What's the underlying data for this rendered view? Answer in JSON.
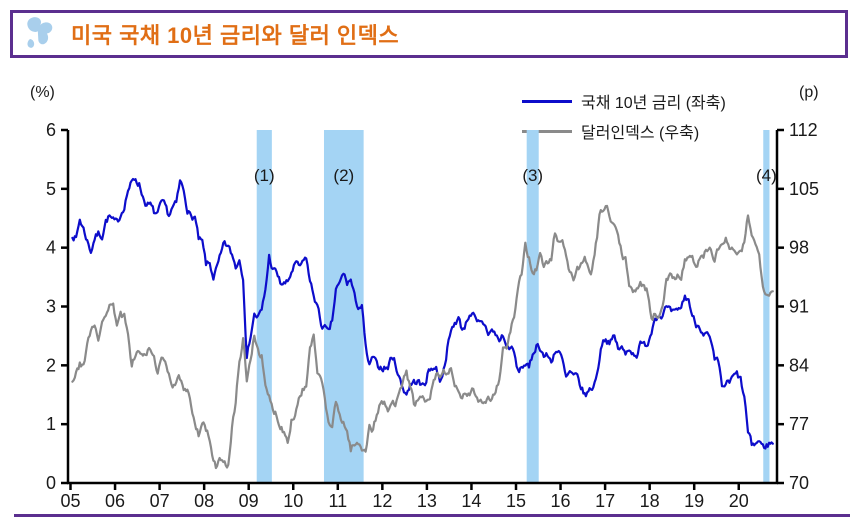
{
  "header": {
    "title": "미국 국채 10년 금리와 달러 인덱스"
  },
  "colors": {
    "accent_border": "#5b2f8f",
    "title_orange": "#e06e15",
    "band_blue": "#a4d4f4",
    "treasury_blue": "#0d0dcb",
    "dollar_gray": "#8a8a8a",
    "axis_black": "#000000"
  },
  "chart_data": {
    "type": "line",
    "title": "미국 국채 10년 금리와 달러 인덱스",
    "x_start_year": 2005,
    "frequency": "monthly",
    "x_range": [
      2005,
      2020.84
    ],
    "x_tick_labels": [
      "05",
      "06",
      "07",
      "08",
      "09",
      "10",
      "11",
      "12",
      "13",
      "14",
      "15",
      "16",
      "17",
      "18",
      "19",
      "20"
    ],
    "left_axis": {
      "label": "(%)",
      "min": 0,
      "max": 6,
      "ticks": [
        0,
        1,
        2,
        3,
        4,
        5,
        6
      ]
    },
    "right_axis": {
      "label": "(p)",
      "min": 70,
      "max": 112,
      "ticks": [
        70,
        77,
        84,
        91,
        98,
        105,
        112
      ]
    },
    "grid": false,
    "legend_position": "top-right",
    "shaded_regions": [
      {
        "label": "(1)",
        "x_from": 2009.18,
        "x_to": 2009.52
      },
      {
        "label": "(2)",
        "x_from": 2010.69,
        "x_to": 2011.58
      },
      {
        "label": "(3)",
        "x_from": 2015.24,
        "x_to": 2015.51
      },
      {
        "label": "(4)",
        "x_from": 2020.55,
        "x_to": 2020.69
      }
    ],
    "series": [
      {
        "name": "국채 10년 금리 (좌축)",
        "axis": "left",
        "color": "#0d0dcb",
        "values": [
          4.22,
          4.15,
          4.48,
          4.32,
          4.12,
          3.94,
          4.16,
          4.24,
          4.2,
          4.45,
          4.53,
          4.45,
          4.42,
          4.56,
          4.72,
          4.98,
          5.1,
          5.18,
          5.08,
          4.87,
          4.72,
          4.72,
          4.6,
          4.56,
          4.76,
          4.7,
          4.55,
          4.68,
          4.74,
          5.12,
          4.98,
          4.66,
          4.51,
          4.52,
          4.14,
          4.08,
          3.72,
          3.72,
          3.5,
          3.66,
          3.87,
          4.08,
          4.0,
          3.88,
          3.68,
          3.8,
          3.52,
          2.12,
          2.52,
          2.86,
          2.82,
          2.92,
          3.28,
          3.85,
          3.62,
          3.58,
          3.4,
          3.38,
          3.4,
          3.58,
          3.72,
          3.68,
          3.72,
          3.84,
          3.42,
          3.2,
          3.0,
          2.7,
          2.64,
          2.54,
          2.76,
          3.28,
          3.38,
          3.57,
          3.4,
          3.45,
          3.16,
          3.0,
          2.99,
          2.3,
          1.97,
          2.14,
          2.0,
          1.97,
          1.96,
          1.96,
          2.16,
          2.04,
          1.8,
          1.62,
          1.52,
          1.67,
          1.71,
          1.74,
          1.64,
          1.71,
          1.9,
          1.97,
          1.95,
          1.75,
          1.92,
          2.29,
          2.57,
          2.73,
          2.8,
          2.61,
          2.71,
          2.89,
          2.85,
          2.7,
          2.71,
          2.7,
          2.55,
          2.59,
          2.53,
          2.41,
          2.52,
          2.29,
          2.32,
          2.2,
          1.88,
          1.97,
          2.03,
          1.93,
          2.19,
          2.35,
          2.31,
          2.16,
          2.16,
          2.06,
          2.25,
          2.23,
          2.08,
          1.77,
          1.88,
          1.8,
          1.8,
          1.63,
          1.49,
          1.55,
          1.62,
          1.75,
          2.13,
          2.48,
          2.42,
          2.41,
          2.47,
          2.29,
          2.29,
          2.18,
          2.31,
          2.2,
          2.19,
          2.35,
          2.34,
          2.39,
          2.58,
          2.86,
          2.84,
          2.87,
          2.98,
          2.91,
          2.89,
          2.89,
          3.0,
          3.16,
          3.12,
          2.83,
          2.7,
          2.67,
          2.56,
          2.52,
          2.39,
          2.06,
          2.05,
          1.62,
          1.69,
          1.7,
          1.8,
          1.85,
          1.75,
          1.45,
          0.86,
          0.65,
          0.67,
          0.72,
          0.61,
          0.64,
          0.68
        ]
      },
      {
        "name": "달러인덱스 (우축)",
        "axis": "right",
        "color": "#8a8a8a",
        "values": [
          81.8,
          83.4,
          84.1,
          84.1,
          86.2,
          88.5,
          89.0,
          87.4,
          88.8,
          89.8,
          91.5,
          91.0,
          89.2,
          90.0,
          89.7,
          87.3,
          84.2,
          85.3,
          85.6,
          84.9,
          85.5,
          85.8,
          84.8,
          83.4,
          84.4,
          84.5,
          83.2,
          81.7,
          82.0,
          82.4,
          80.7,
          80.8,
          79.0,
          77.5,
          75.9,
          77.4,
          76.2,
          75.2,
          72.3,
          71.8,
          72.9,
          72.7,
          72.1,
          76.8,
          79.2,
          84.8,
          87.0,
          82.0,
          84.6,
          87.8,
          86.0,
          85.0,
          81.2,
          80.1,
          78.7,
          78.2,
          76.8,
          76.2,
          75.1,
          77.6,
          78.0,
          80.2,
          81.0,
          81.4,
          85.7,
          87.5,
          82.6,
          82.8,
          79.7,
          77.2,
          76.8,
          79.4,
          78.1,
          77.3,
          76.0,
          74.1,
          74.5,
          74.6,
          74.1,
          74.1,
          76.8,
          76.3,
          78.1,
          79.7,
          79.3,
          78.6,
          79.4,
          79.5,
          81.3,
          82.2,
          82.9,
          81.6,
          79.6,
          79.5,
          80.1,
          79.6,
          79.7,
          81.2,
          82.8,
          82.5,
          83.4,
          82.7,
          84.0,
          81.5,
          80.5,
          79.8,
          80.8,
          80.3,
          81.0,
          80.1,
          79.9,
          79.7,
          80.3,
          80.1,
          80.9,
          82.5,
          85.8,
          86.2,
          88.0,
          89.8,
          92.6,
          94.9,
          98.3,
          96.8,
          95.1,
          95.4,
          97.1,
          95.8,
          96.1,
          96.8,
          99.7,
          98.6,
          99.3,
          97.0,
          95.0,
          94.3,
          95.6,
          95.8,
          96.5,
          95.2,
          95.3,
          98.2,
          101.5,
          102.7,
          102.9,
          101.1,
          100.4,
          99.5,
          97.1,
          96.4,
          93.8,
          93.0,
          92.8,
          93.5,
          93.7,
          92.7,
          89.6,
          90.1,
          89.8,
          91.6,
          94.0,
          94.5,
          94.4,
          95.0,
          94.5,
          96.5,
          97.0,
          96.7,
          95.8,
          96.5,
          97.1,
          97.6,
          97.8,
          96.5,
          97.8,
          98.4,
          99.0,
          97.5,
          98.0,
          96.7,
          97.4,
          98.4,
          102.0,
          99.8,
          98.2,
          97.2,
          93.8,
          92.6,
          92.8
        ]
      }
    ]
  }
}
